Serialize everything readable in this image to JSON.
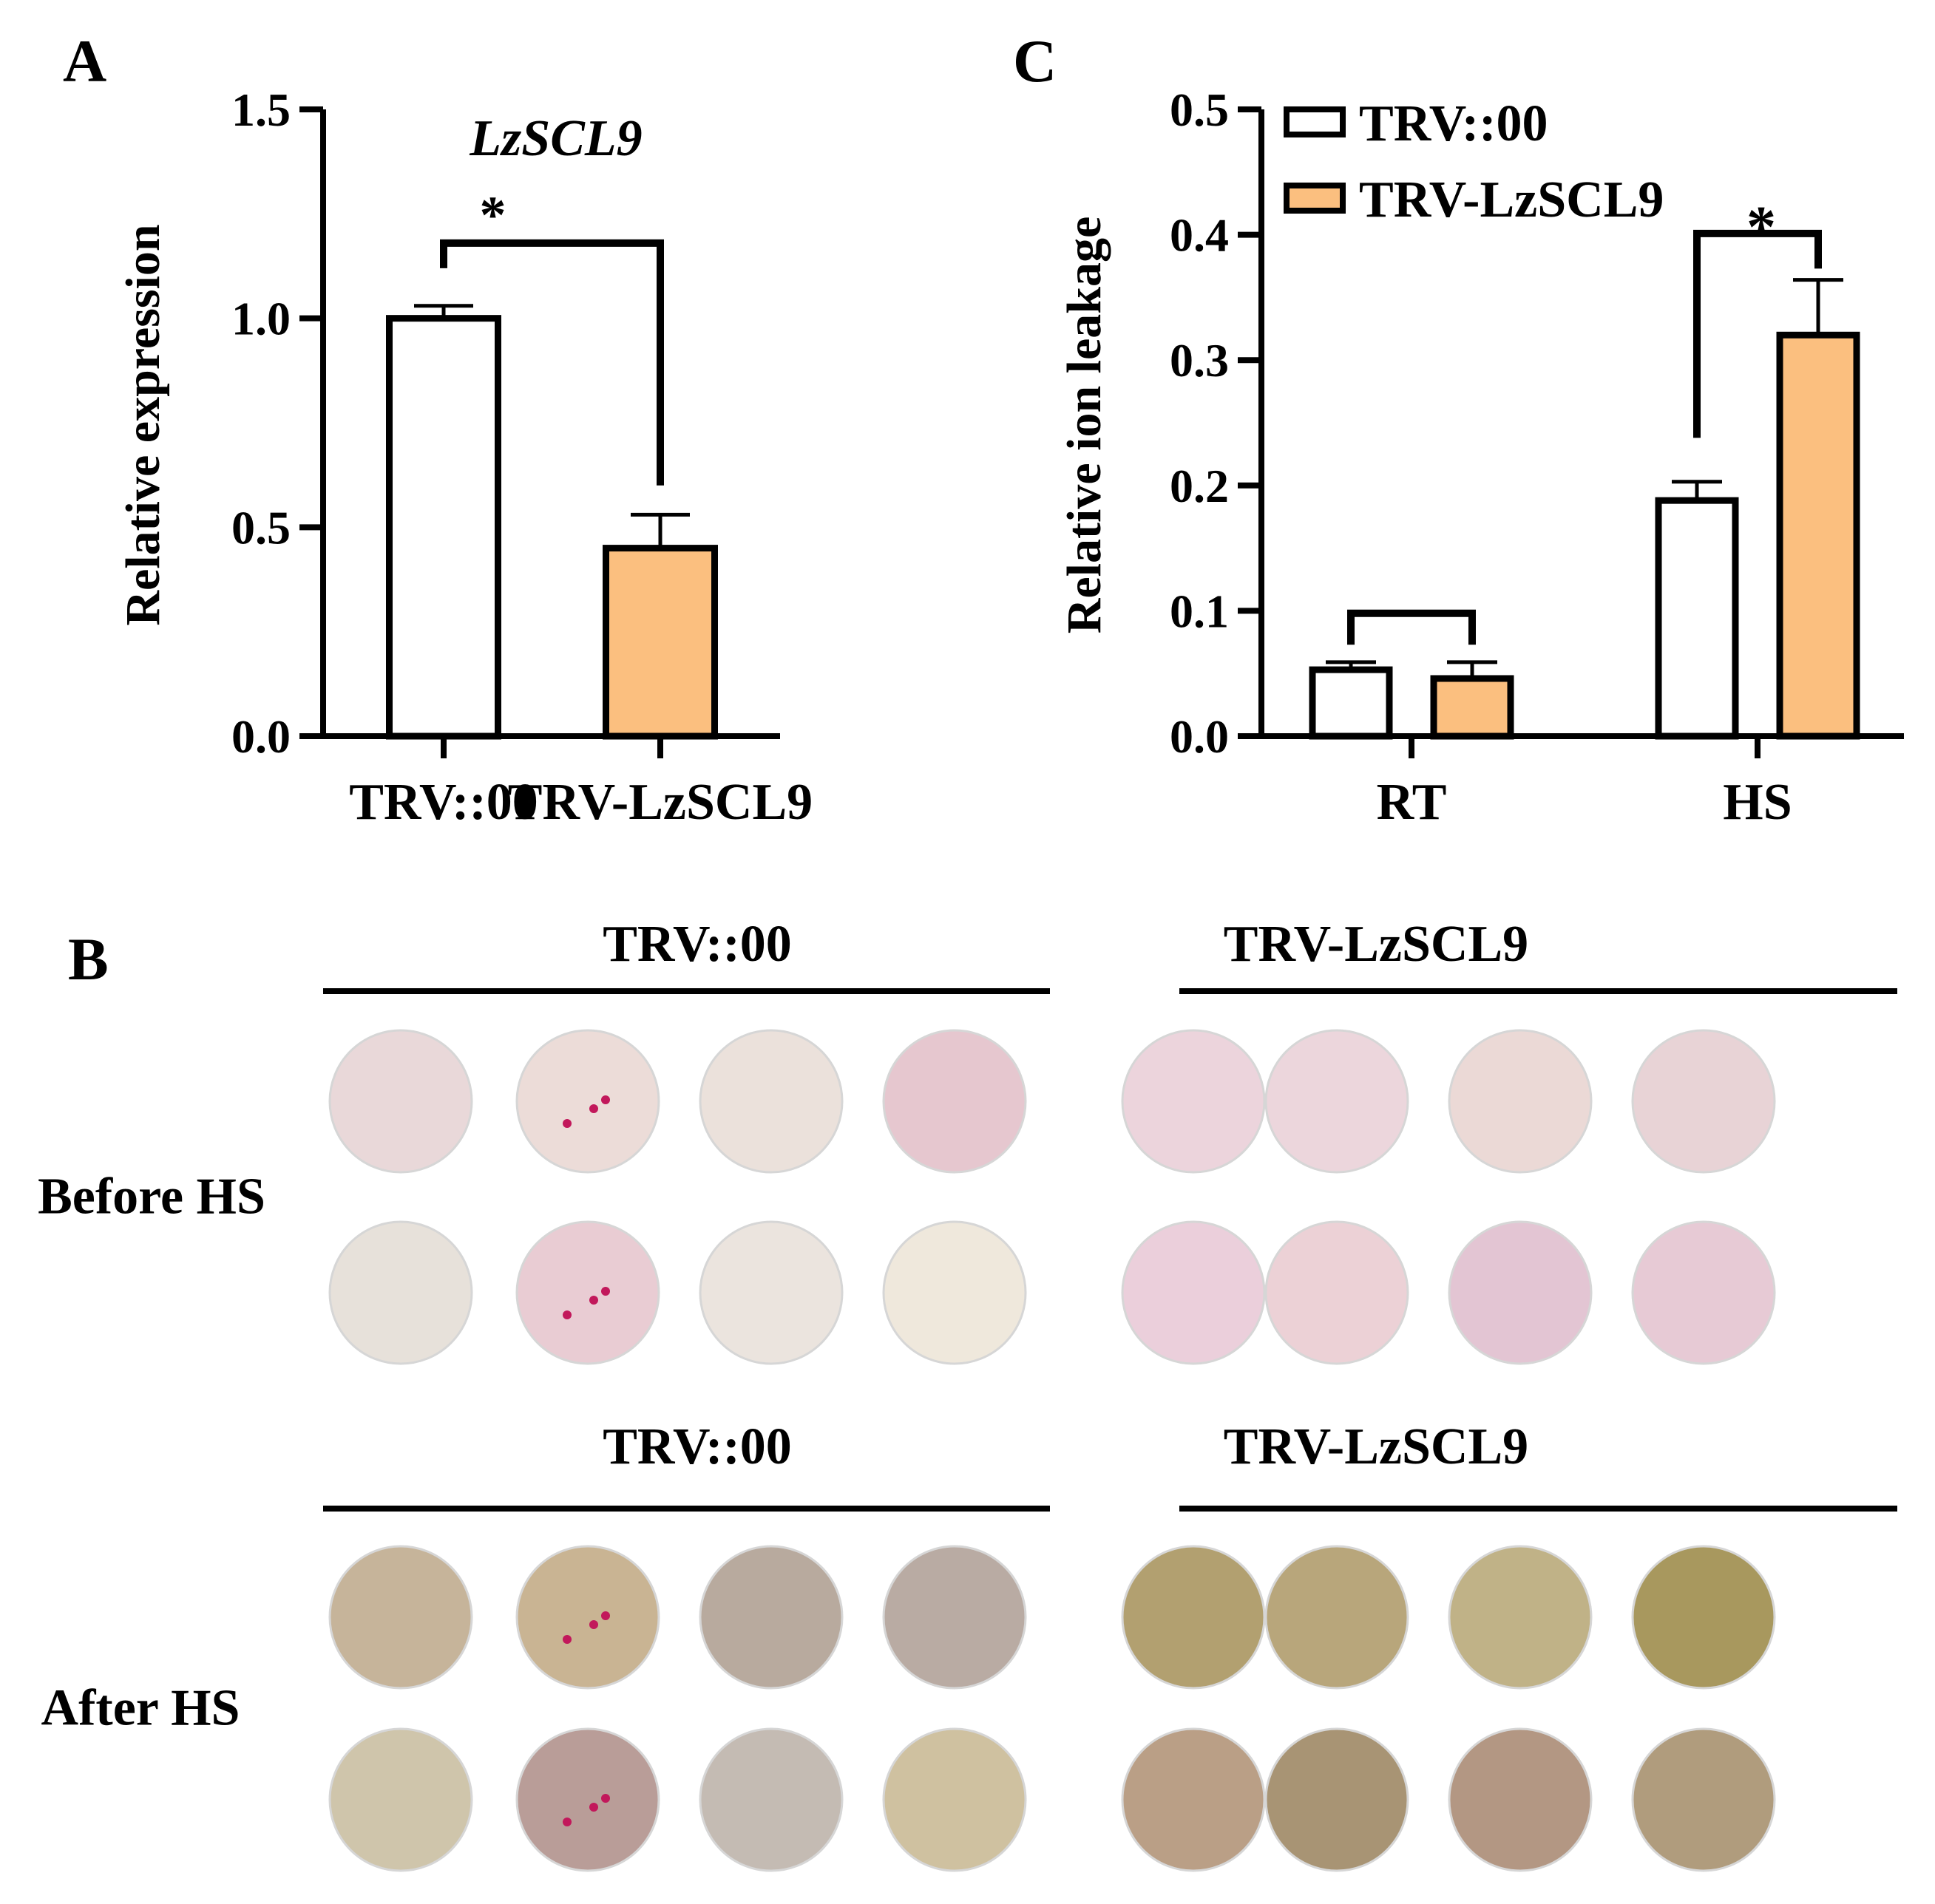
{
  "panels": {
    "A": {
      "letter": "A"
    },
    "B": {
      "letter": "B",
      "row_labels": [
        "Before HS",
        "After HS"
      ],
      "group_labels": [
        "TRV::00",
        "TRV-LzSCL9"
      ],
      "sections": [
        {
          "row_label": "Before HS",
          "groups": [
            {
              "label": "TRV::00",
              "discs": [
                "#e9d8d9",
                "#ecdcd8",
                "#ebe1db",
                "#e6c7cf",
                "#e7e1da",
                "#e9ccd3",
                "#ebe4de",
                "#efe8dc"
              ],
              "spots": [
                0,
                1,
                0,
                0,
                0,
                1,
                0,
                0
              ]
            },
            {
              "label": "TRV-LzSCL9",
              "discs": [
                "#ecd4dc",
                "#ecd6dc",
                "#ebd9d6",
                "#e8d3d6",
                "#ebcfdb",
                "#ecd1d6",
                "#e3c5d3",
                "#e7cad5"
              ],
              "spots": [
                0,
                0,
                0,
                0,
                0,
                0,
                0,
                0
              ]
            }
          ]
        },
        {
          "row_label": "After HS",
          "groups": [
            {
              "label": "TRV::00",
              "discs": [
                "#c6b49a",
                "#c9b493",
                "#b8aa9e",
                "#b9aba3",
                "#cfc5ab",
                "#b99d98",
                "#c4bbb3",
                "#cfc1a0"
              ],
              "spots": [
                0,
                1,
                0,
                0,
                0,
                1,
                0,
                0
              ]
            },
            {
              "label": "TRV-LzSCL9",
              "discs": [
                "#b2a070",
                "#b8a67b",
                "#c0b287",
                "#a8985e",
                "#ba9f86",
                "#a89474",
                "#b39783",
                "#b09c7d"
              ],
              "spots": [
                0,
                0,
                0,
                0,
                0,
                0,
                0,
                0
              ]
            }
          ]
        }
      ]
    },
    "C": {
      "letter": "C"
    }
  },
  "chart_data": [
    {
      "panel": "A",
      "type": "bar",
      "title": "LzSCL9",
      "ylabel": "Relative expression",
      "xlabel": "",
      "categories": [
        "TRV::00",
        "TRV-LzSCL9"
      ],
      "values": [
        1.0,
        0.45
      ],
      "errors": [
        0.03,
        0.08
      ],
      "colors": [
        "#ffffff",
        "#fbbf7f"
      ],
      "ylim": [
        0,
        1.5
      ],
      "yticks": [
        "0.0",
        "0.5",
        "1.0",
        "1.5"
      ],
      "ytick_values": [
        0,
        0.5,
        1.0,
        1.5
      ],
      "significance": [
        {
          "between": [
            0,
            1
          ],
          "label": "*",
          "level": 1.18,
          "left_drop": 1.12,
          "right_drop": 0.6
        }
      ]
    },
    {
      "panel": "C",
      "type": "bar",
      "title": "",
      "ylabel": "Relative ion leakage",
      "xlabel": "",
      "categories": [
        "RT",
        "HS"
      ],
      "series": [
        {
          "name": "TRV::00",
          "color": "#ffffff",
          "values": [
            0.053,
            0.188
          ],
          "errors": [
            0.006,
            0.015
          ]
        },
        {
          "name": "TRV-LzSCL9",
          "color": "#fbbf7f",
          "values": [
            0.046,
            0.32
          ],
          "errors": [
            0.013,
            0.044
          ]
        }
      ],
      "ylim": [
        0,
        0.5
      ],
      "yticks": [
        "0.0",
        "0.1",
        "0.2",
        "0.3",
        "0.4",
        "0.5"
      ],
      "ytick_values": [
        0,
        0.1,
        0.2,
        0.3,
        0.4,
        0.5
      ],
      "legend_position": "top-left",
      "significance": [
        {
          "category": 0,
          "label": "",
          "level": 0.098,
          "left_drop": 0.073,
          "right_drop": 0.073
        },
        {
          "category": 1,
          "label": "*",
          "level": 0.401,
          "left_drop": 0.238,
          "right_drop": 0.373
        }
      ]
    }
  ]
}
